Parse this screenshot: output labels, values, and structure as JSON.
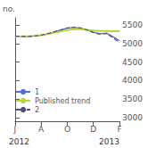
{
  "chart_data": {
    "type": "line",
    "ylabel": "no.",
    "annotations": [
      "2012",
      "2013"
    ],
    "x": [
      0,
      0.5,
      1.0,
      1.5,
      2.0,
      2.5,
      3.0,
      3.5,
      4.0,
      4.5,
      5.0,
      5.5,
      6.0,
      6.5,
      7.0,
      7.5,
      8.0
    ],
    "xlim": [
      0,
      8
    ],
    "xticks": [
      {
        "value": 0,
        "label": "J"
      },
      {
        "value": 2,
        "label": "A"
      },
      {
        "value": 4,
        "label": "O"
      },
      {
        "value": 6,
        "label": "D"
      },
      {
        "value": 8,
        "label": "F"
      }
    ],
    "ylim": [
      2900,
      5700
    ],
    "yticks": [
      3000,
      3500,
      4000,
      4500,
      5000,
      5500
    ],
    "grid": false,
    "legend": "lower left",
    "series": [
      {
        "name": "1",
        "line_style": "solid",
        "values": [
          5200,
          5195,
          5195,
          5205,
          5230,
          5270,
          5320,
          5370,
          5420,
          5440,
          5420,
          5370,
          5310,
          5270,
          5290,
          5190,
          5080
        ]
      },
      {
        "name": "Published trend",
        "line_style": "solid",
        "values": [
          5195,
          5198,
          5202,
          5212,
          5230,
          5258,
          5295,
          5335,
          5370,
          5390,
          5390,
          5375,
          5355,
          5345,
          5345,
          5340,
          5335
        ]
      },
      {
        "name": "2",
        "line_style": "dashed",
        "values": [
          5205,
          5198,
          5197,
          5208,
          5232,
          5272,
          5323,
          5375,
          5425,
          5448,
          5428,
          5373,
          5305,
          5258,
          5275,
          5158,
          5030
        ]
      }
    ]
  }
}
